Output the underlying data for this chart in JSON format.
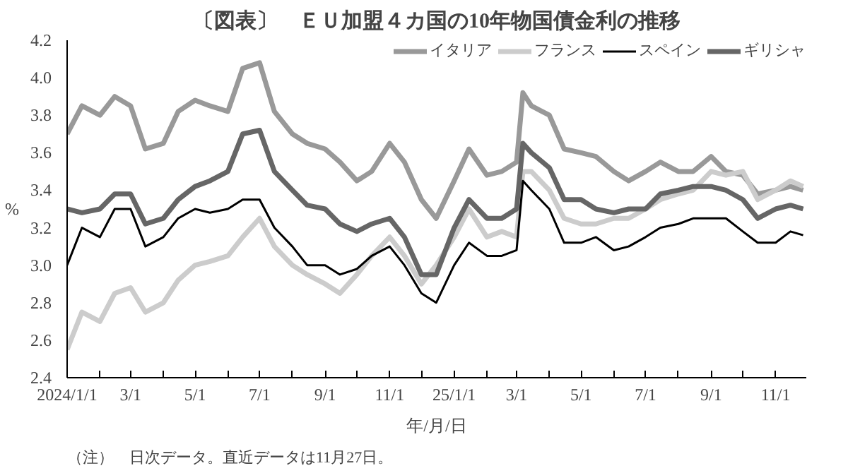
{
  "chart_data": {
    "type": "line",
    "title": "〔図表〕　ＥＵ加盟４カ国の10年物国債金利の推移",
    "xlabel": "年/月/日",
    "ylabel": "%",
    "annotations": [
      "（注）　日次データ。直近データは11月27日。"
    ],
    "x": [
      "2024-01-01",
      "2024-01-15",
      "2024-02-01",
      "2024-02-15",
      "2024-03-01",
      "2024-03-15",
      "2024-04-01",
      "2024-04-15",
      "2024-05-01",
      "2024-05-15",
      "2024-06-01",
      "2024-06-15",
      "2024-07-01",
      "2024-07-15",
      "2024-08-01",
      "2024-08-15",
      "2024-09-01",
      "2024-09-15",
      "2024-10-01",
      "2024-10-15",
      "2024-11-01",
      "2024-11-15",
      "2024-12-01",
      "2024-12-15",
      "2025-01-01",
      "2025-01-15",
      "2025-02-01",
      "2025-02-15",
      "2025-03-01",
      "2025-03-07",
      "2025-03-15",
      "2025-04-01",
      "2025-04-15",
      "2025-05-01",
      "2025-05-15",
      "2025-06-01",
      "2025-06-15",
      "2025-07-01",
      "2025-07-15",
      "2025-08-01",
      "2025-08-15",
      "2025-09-01",
      "2025-09-15",
      "2025-10-01",
      "2025-10-15",
      "2025-11-01",
      "2025-11-15",
      "2025-11-27"
    ],
    "series": [
      {
        "name": "イタリア",
        "color": "#999999",
        "values": [
          3.7,
          3.85,
          3.8,
          3.9,
          3.85,
          3.62,
          3.65,
          3.82,
          3.88,
          3.85,
          3.82,
          4.05,
          4.08,
          3.82,
          3.7,
          3.65,
          3.62,
          3.55,
          3.45,
          3.5,
          3.65,
          3.55,
          3.35,
          3.25,
          3.45,
          3.62,
          3.48,
          3.5,
          3.55,
          3.92,
          3.85,
          3.8,
          3.62,
          3.6,
          3.58,
          3.5,
          3.45,
          3.5,
          3.55,
          3.5,
          3.5,
          3.58,
          3.5,
          3.48,
          3.38,
          3.4,
          3.42,
          3.4
        ]
      },
      {
        "name": "フランス",
        "color": "#cccccc",
        "values": [
          2.55,
          2.75,
          2.7,
          2.85,
          2.88,
          2.75,
          2.8,
          2.92,
          3.0,
          3.02,
          3.05,
          3.15,
          3.25,
          3.1,
          3.0,
          2.95,
          2.9,
          2.85,
          2.95,
          3.05,
          3.15,
          3.05,
          2.9,
          3.0,
          3.15,
          3.3,
          3.15,
          3.18,
          3.15,
          3.5,
          3.5,
          3.4,
          3.25,
          3.22,
          3.22,
          3.25,
          3.25,
          3.3,
          3.35,
          3.38,
          3.4,
          3.5,
          3.48,
          3.5,
          3.35,
          3.4,
          3.45,
          3.42
        ]
      },
      {
        "name": "スペイン",
        "color": "#000000",
        "values": [
          3.0,
          3.2,
          3.15,
          3.3,
          3.3,
          3.1,
          3.15,
          3.25,
          3.3,
          3.28,
          3.3,
          3.35,
          3.35,
          3.2,
          3.1,
          3.0,
          3.0,
          2.95,
          2.98,
          3.05,
          3.1,
          3.0,
          2.85,
          2.8,
          3.0,
          3.12,
          3.05,
          3.05,
          3.08,
          3.45,
          3.4,
          3.3,
          3.12,
          3.12,
          3.15,
          3.08,
          3.1,
          3.15,
          3.2,
          3.22,
          3.25,
          3.25,
          3.25,
          3.18,
          3.12,
          3.12,
          3.18,
          3.16
        ]
      },
      {
        "name": "ギリシャ",
        "color": "#666666",
        "values": [
          3.3,
          3.28,
          3.3,
          3.38,
          3.38,
          3.22,
          3.25,
          3.35,
          3.42,
          3.45,
          3.5,
          3.7,
          3.72,
          3.5,
          3.4,
          3.32,
          3.3,
          3.22,
          3.18,
          3.22,
          3.25,
          3.15,
          2.95,
          2.95,
          3.2,
          3.35,
          3.25,
          3.25,
          3.3,
          3.65,
          3.6,
          3.52,
          3.35,
          3.35,
          3.3,
          3.28,
          3.3,
          3.3,
          3.38,
          3.4,
          3.42,
          3.42,
          3.4,
          3.35,
          3.25,
          3.3,
          3.32,
          3.3
        ]
      }
    ],
    "xlim": [
      "2024-01-01",
      "2025-11-30"
    ],
    "xticks": [
      {
        "value": "2024-01-01",
        "label": "2024/1/1"
      },
      {
        "value": "2024-02-01",
        "label": null
      },
      {
        "value": "2024-03-01",
        "label": "3/1"
      },
      {
        "value": "2024-04-01",
        "label": null
      },
      {
        "value": "2024-05-01",
        "label": "5/1"
      },
      {
        "value": "2024-06-01",
        "label": null
      },
      {
        "value": "2024-07-01",
        "label": "7/1"
      },
      {
        "value": "2024-08-01",
        "label": null
      },
      {
        "value": "2024-09-01",
        "label": "9/1"
      },
      {
        "value": "2024-10-01",
        "label": null
      },
      {
        "value": "2024-11-01",
        "label": "11/1"
      },
      {
        "value": "2024-12-01",
        "label": null
      },
      {
        "value": "2025-01-01",
        "label": "25/1/1"
      },
      {
        "value": "2025-02-01",
        "label": null
      },
      {
        "value": "2025-03-01",
        "label": "3/1"
      },
      {
        "value": "2025-04-01",
        "label": null
      },
      {
        "value": "2025-05-01",
        "label": "5/1"
      },
      {
        "value": "2025-06-01",
        "label": null
      },
      {
        "value": "2025-07-01",
        "label": "7/1"
      },
      {
        "value": "2025-08-01",
        "label": null
      },
      {
        "value": "2025-09-01",
        "label": "9/1"
      },
      {
        "value": "2025-10-01",
        "label": null
      },
      {
        "value": "2025-11-01",
        "label": "11/1"
      }
    ],
    "ylim": [
      2.4,
      4.2
    ],
    "yticks": [
      2.4,
      2.6,
      2.8,
      {
        "value": 3,
        "label": "3.0"
      },
      3.2,
      3.4,
      3.6,
      3.8,
      {
        "value": 4,
        "label": "4.0"
      },
      4.2
    ],
    "grid": false,
    "legend": "top right",
    "marker": "none",
    "line_style": "solid"
  }
}
